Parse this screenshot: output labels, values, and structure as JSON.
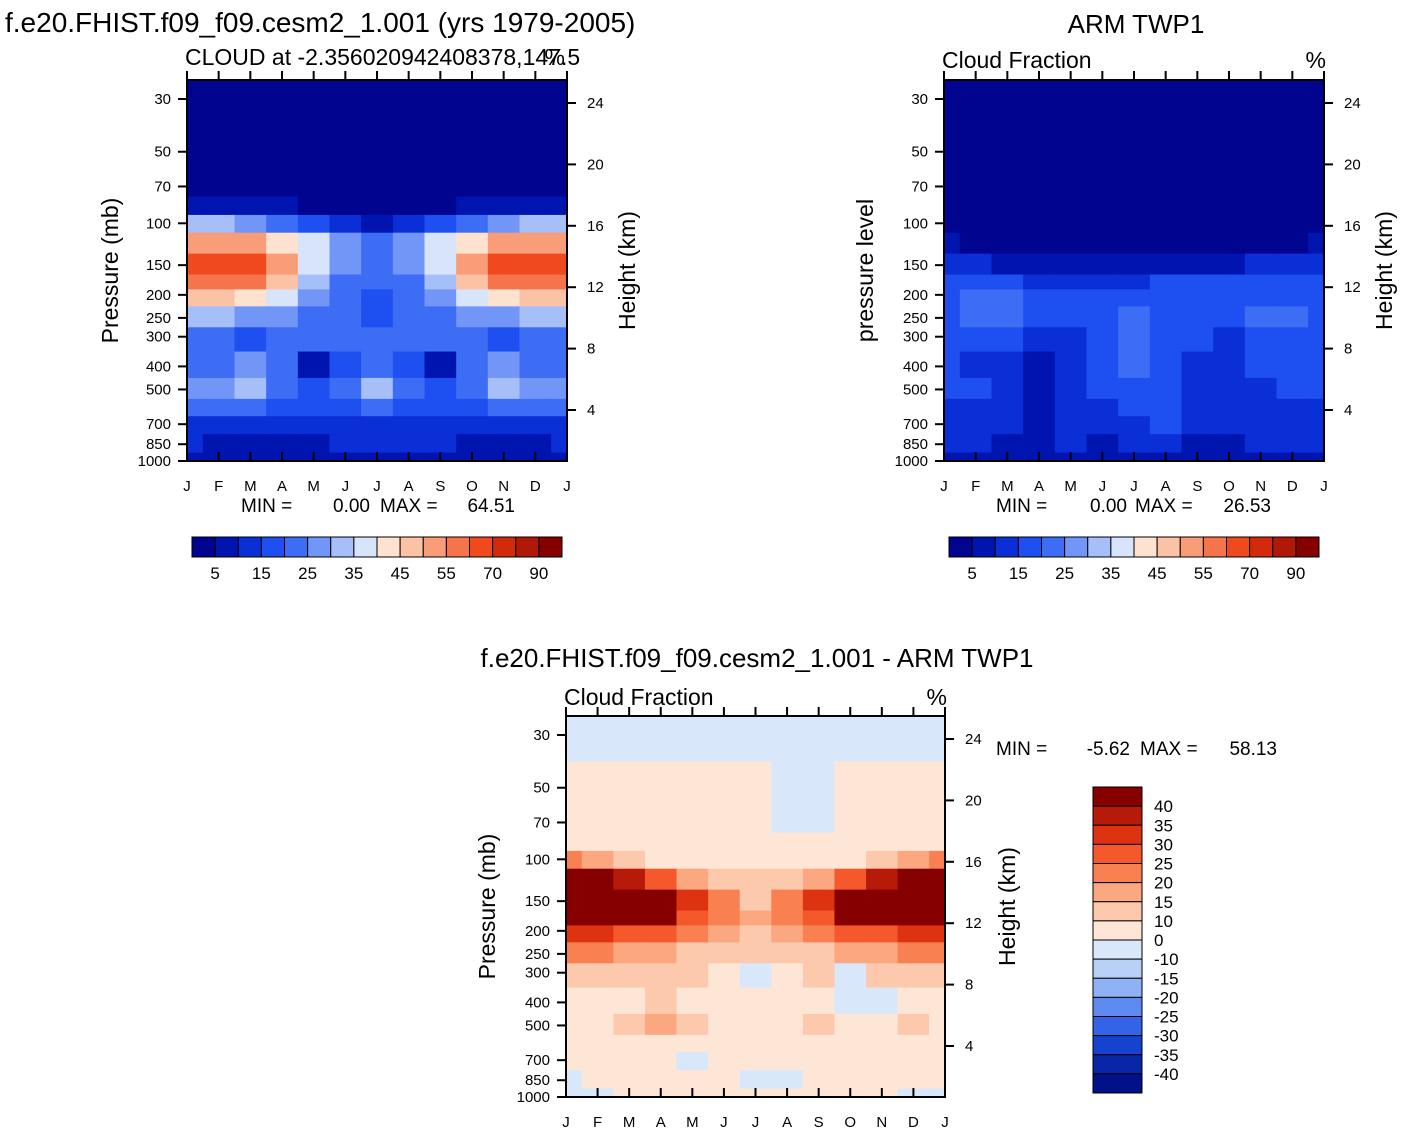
{
  "page": {
    "title_left": "f.e20.FHIST.f09_f09.cesm2_1.001 (yrs 1979-2005)",
    "title_right": "ARM TWP1",
    "title_bottom": "f.e20.FHIST.f09_f09.cesm2_1.001 - ARM TWP1"
  },
  "chart_data": [
    {
      "type": "heatmap",
      "id": "model",
      "title": "CLOUD at -2.356020942408378,147.5",
      "units": "%",
      "ylabel": "Pressure (mb)",
      "y2label": "Height (km)",
      "x_ticks": [
        "J",
        "F",
        "M",
        "A",
        "M",
        "J",
        "J",
        "A",
        "S",
        "O",
        "N",
        "D",
        "J"
      ],
      "y_ticks": [
        30,
        50,
        70,
        100,
        150,
        200,
        250,
        300,
        400,
        500,
        700,
        850,
        1000
      ],
      "y2_ticks": [
        24,
        20,
        16,
        12,
        8,
        4
      ],
      "min_label": "MIN =",
      "min_value": "0.00",
      "max_label": "MAX =",
      "max_value": "64.51",
      "colorbar_labels": [
        "5",
        "15",
        "25",
        "35",
        "45",
        "55",
        "70",
        "90"
      ],
      "colors": [
        "#00048f",
        "#0014b0",
        "#0a2fd6",
        "#1e4ff0",
        "#3d6cf5",
        "#7296f7",
        "#a6bff8",
        "#d8e4fa",
        "#fde3cf",
        "#fcc2a6",
        "#f99c78",
        "#f5744c",
        "#f0491e",
        "#d32a0c",
        "#b01808",
        "#870000"
      ],
      "levels_pressure": [
        30,
        50,
        70,
        85,
        100,
        120,
        150,
        180,
        200,
        250,
        300,
        400,
        500,
        600,
        700,
        850,
        1000
      ],
      "month_cols": [
        "J",
        "F",
        "M",
        "A",
        "M",
        "J",
        "J",
        "A",
        "S",
        "O",
        "N",
        "D",
        "J"
      ],
      "values": [
        [
          0,
          0,
          0,
          0,
          0,
          0,
          0,
          0,
          0,
          0,
          0,
          0,
          0
        ],
        [
          0,
          0,
          0,
          0,
          0,
          0,
          0,
          0,
          0,
          0,
          0,
          0,
          0
        ],
        [
          1,
          1,
          1,
          1,
          1,
          1,
          1,
          1,
          1,
          1,
          1,
          1,
          1
        ],
        [
          5,
          5,
          5,
          5,
          4,
          3,
          2,
          3,
          4,
          5,
          5,
          5,
          5
        ],
        [
          30,
          30,
          28,
          24,
          18,
          12,
          8,
          12,
          18,
          24,
          28,
          30,
          30
        ],
        [
          50,
          52,
          50,
          44,
          35,
          25,
          20,
          25,
          35,
          44,
          50,
          52,
          50
        ],
        [
          60,
          63,
          62,
          52,
          38,
          25,
          21,
          25,
          38,
          52,
          62,
          64,
          60
        ],
        [
          55,
          57,
          56,
          46,
          32,
          24,
          20,
          24,
          32,
          46,
          56,
          57,
          55
        ],
        [
          45,
          46,
          44,
          38,
          28,
          22,
          18,
          22,
          28,
          38,
          44,
          46,
          45
        ],
        [
          30,
          30,
          28,
          26,
          22,
          20,
          18,
          20,
          22,
          26,
          28,
          30,
          30
        ],
        [
          22,
          20,
          18,
          21,
          21,
          21,
          20,
          21,
          21,
          21,
          18,
          20,
          22
        ],
        [
          20,
          20,
          25,
          20,
          8,
          18,
          22,
          18,
          8,
          20,
          25,
          20,
          20
        ],
        [
          26,
          28,
          30,
          22,
          16,
          22,
          32,
          22,
          16,
          22,
          30,
          28,
          26
        ],
        [
          22,
          22,
          22,
          18,
          16,
          18,
          20,
          18,
          16,
          18,
          22,
          22,
          22
        ],
        [
          14,
          14,
          14,
          13,
          13,
          13,
          13,
          13,
          13,
          13,
          14,
          14,
          14
        ],
        [
          10,
          8,
          6,
          9,
          5,
          12,
          12,
          12,
          12,
          5,
          9,
          8,
          10
        ],
        [
          5,
          5,
          5,
          5,
          5,
          5,
          5,
          5,
          5,
          5,
          5,
          5,
          5
        ]
      ]
    },
    {
      "type": "heatmap",
      "id": "obs",
      "title": "Cloud Fraction",
      "units": "%",
      "ylabel": "pressure level",
      "y2label": "Height (km)",
      "x_ticks": [
        "J",
        "F",
        "M",
        "A",
        "M",
        "J",
        "J",
        "A",
        "S",
        "O",
        "N",
        "D",
        "J"
      ],
      "y_ticks": [
        30,
        50,
        70,
        100,
        150,
        200,
        250,
        300,
        400,
        500,
        700,
        850,
        1000
      ],
      "y2_ticks": [
        24,
        20,
        16,
        12,
        8,
        4
      ],
      "min_label": "MIN =",
      "min_value": "0.00",
      "max_label": "MAX =",
      "max_value": "26.53",
      "colorbar_labels": [
        "5",
        "15",
        "25",
        "35",
        "45",
        "55",
        "70",
        "90"
      ],
      "colors": [
        "#00048f",
        "#0014b0",
        "#0a2fd6",
        "#1e4ff0",
        "#3d6cf5",
        "#7296f7",
        "#a6bff8",
        "#d8e4fa",
        "#fde3cf",
        "#fcc2a6",
        "#f99c78",
        "#f5744c",
        "#f0491e",
        "#d32a0c",
        "#b01808",
        "#870000"
      ],
      "levels_pressure": [
        30,
        50,
        70,
        85,
        100,
        120,
        150,
        180,
        200,
        250,
        300,
        400,
        500,
        600,
        700,
        850,
        1000
      ],
      "month_cols": [
        "J",
        "F",
        "M",
        "A",
        "M",
        "J",
        "J",
        "A",
        "S",
        "O",
        "N",
        "D",
        "J"
      ],
      "values": [
        [
          0,
          0,
          0,
          0,
          0,
          0,
          0,
          0,
          0,
          0,
          0,
          0,
          0
        ],
        [
          0,
          0,
          0,
          0,
          0,
          0,
          0,
          0,
          0,
          0,
          0,
          0,
          0
        ],
        [
          0,
          0,
          0,
          0,
          0,
          0,
          0,
          0,
          0,
          0,
          0,
          0,
          0
        ],
        [
          1,
          1,
          1,
          1,
          1,
          1,
          1,
          1,
          1,
          1,
          1,
          1,
          1
        ],
        [
          2,
          2,
          2,
          2,
          2,
          2,
          2,
          2,
          2,
          2,
          2,
          2,
          2
        ],
        [
          7,
          4,
          3,
          3,
          3,
          3,
          3,
          3,
          3,
          3,
          3,
          4,
          7
        ],
        [
          12,
          10,
          9,
          9,
          8,
          8,
          7,
          8,
          8,
          9,
          10,
          11,
          12
        ],
        [
          16,
          16,
          15,
          14,
          14,
          14,
          14,
          16,
          16,
          16,
          18,
          18,
          16
        ],
        [
          16,
          22,
          20,
          18,
          16,
          15,
          16,
          16,
          16,
          16,
          18,
          18,
          16
        ],
        [
          16,
          20,
          20,
          18,
          16,
          15,
          22,
          16,
          16,
          16,
          20,
          22,
          16
        ],
        [
          16,
          17,
          16,
          14,
          14,
          15,
          24,
          16,
          15,
          14,
          18,
          16,
          16
        ],
        [
          15,
          14,
          12,
          9,
          12,
          15,
          21,
          17,
          14,
          14,
          15,
          15,
          15
        ],
        [
          15,
          15,
          14,
          8,
          13,
          15,
          17,
          17,
          14,
          14,
          14,
          15,
          15
        ],
        [
          14,
          14,
          13,
          8,
          12,
          14,
          16,
          16,
          12,
          12,
          13,
          14,
          14
        ],
        [
          14,
          14,
          13,
          9,
          12,
          14,
          13,
          15,
          10,
          10,
          13,
          14,
          14
        ],
        [
          13,
          11,
          8,
          8,
          10,
          9,
          12,
          13,
          8,
          8,
          10,
          12,
          13
        ],
        [
          7,
          7,
          7,
          7,
          7,
          7,
          7,
          7,
          7,
          7,
          7,
          7,
          7
        ]
      ]
    },
    {
      "type": "heatmap",
      "id": "diff",
      "title": "Cloud Fraction",
      "units": "%",
      "ylabel": "Pressure (mb)",
      "y2label": "Height (km)",
      "x_ticks": [
        "J",
        "F",
        "M",
        "A",
        "M",
        "J",
        "J",
        "A",
        "S",
        "O",
        "N",
        "D",
        "J"
      ],
      "y_ticks": [
        30,
        50,
        70,
        100,
        150,
        200,
        250,
        300,
        400,
        500,
        700,
        850,
        1000
      ],
      "y2_ticks": [
        24,
        20,
        16,
        12,
        8,
        4
      ],
      "min_label": "MIN =",
      "min_value": "-5.62",
      "max_label": "MAX =",
      "max_value": "58.13",
      "colorbar_labels": [
        "40",
        "35",
        "30",
        "25",
        "20",
        "15",
        "10",
        "0",
        "-10",
        "-15",
        "-20",
        "-25",
        "-30",
        "-35",
        "-40"
      ],
      "colors": [
        "#870000",
        "#b81a0a",
        "#dd3311",
        "#f5582a",
        "#f98050",
        "#fba880",
        "#fdc9ac",
        "#fde6d6",
        "#d8e8fa",
        "#b9d1f7",
        "#8fb2f4",
        "#5e8bef",
        "#3364e8",
        "#1543cf",
        "#0727a8",
        "#00118a"
      ],
      "levels_pressure": [
        30,
        50,
        70,
        85,
        100,
        120,
        150,
        180,
        200,
        250,
        300,
        400,
        500,
        600,
        700,
        850,
        1000
      ],
      "month_cols": [
        "J",
        "F",
        "M",
        "A",
        "M",
        "J",
        "J",
        "A",
        "S",
        "O",
        "N",
        "D",
        "J"
      ],
      "values": [
        [
          -2,
          -2,
          -2,
          -2,
          -2,
          -2,
          -2,
          -2,
          -2,
          -2,
          -2,
          -2,
          -2
        ],
        [
          2,
          2,
          2,
          2,
          2,
          2,
          2,
          -1,
          -1,
          2,
          2,
          2,
          2
        ],
        [
          3,
          3,
          3,
          3,
          3,
          3,
          3,
          -2,
          -2,
          3,
          3,
          3,
          3
        ],
        [
          4,
          4,
          4,
          4,
          4,
          4,
          4,
          4,
          4,
          4,
          4,
          4,
          4
        ],
        [
          20,
          18,
          12,
          8,
          6,
          4,
          4,
          4,
          6,
          8,
          12,
          18,
          20
        ],
        [
          40,
          40,
          35,
          25,
          18,
          12,
          10,
          12,
          18,
          25,
          35,
          40,
          40
        ],
        [
          52,
          56,
          53,
          42,
          30,
          20,
          14,
          20,
          30,
          42,
          53,
          58,
          52
        ],
        [
          48,
          50,
          48,
          40,
          28,
          20,
          16,
          20,
          28,
          40,
          48,
          50,
          48
        ],
        [
          30,
          30,
          28,
          26,
          20,
          16,
          14,
          16,
          20,
          26,
          28,
          30,
          30
        ],
        [
          22,
          20,
          18,
          17,
          12,
          10,
          10,
          10,
          12,
          17,
          18,
          20,
          22
        ],
        [
          10,
          10,
          10,
          14,
          10,
          8,
          -2,
          8,
          10,
          -2,
          10,
          10,
          10
        ],
        [
          5,
          5,
          6,
          12,
          8,
          6,
          4,
          6,
          6,
          -2,
          -2,
          6,
          5
        ],
        [
          8,
          8,
          12,
          18,
          12,
          8,
          6,
          8,
          12,
          8,
          8,
          12,
          8
        ],
        [
          4,
          4,
          5,
          5,
          4,
          4,
          4,
          4,
          4,
          4,
          4,
          4,
          4
        ],
        [
          2,
          2,
          2,
          2,
          -1,
          2,
          2,
          2,
          2,
          2,
          2,
          2,
          2
        ],
        [
          -1,
          2,
          2,
          2,
          2,
          2,
          -1,
          -1,
          2,
          2,
          2,
          2,
          2
        ],
        [
          -1,
          -1,
          2,
          2,
          2,
          2,
          2,
          2,
          2,
          2,
          2,
          -1,
          -1
        ]
      ]
    }
  ]
}
